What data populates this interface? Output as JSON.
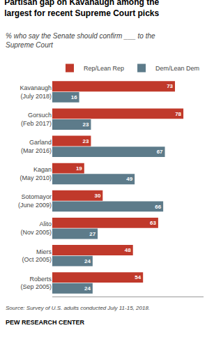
{
  "chart_data": {
    "type": "bar",
    "orientation": "horizontal",
    "title": "Partisan gap on Kavanaugh among the\nlargest for recent Supreme Court picks",
    "subtitle": "% who say the Senate should confirm ___ to the\nSupreme Court",
    "annotations": [
      "Source: Survey of U.S. adults conducted July 11-15, 2018.",
      "PEW RESEARCH CENTER"
    ],
    "categories": [
      "Kavanaugh\n(July 2018)",
      "Gorsuch\n(Feb 2017)",
      "Garland\n(Mar 2016)",
      "Kagan\n(May 2010)",
      "Sotomayor\n(June 2009)",
      "Alito\n(Nov 2005)",
      "Miers\n(Oct 2005)",
      "Roberts\n(Sep 2005)"
    ],
    "series": [
      {
        "name": "Rep/Lean Rep",
        "color": "#C0392B",
        "values": [
          73,
          78,
          23,
          19,
          30,
          63,
          48,
          54
        ]
      },
      {
        "name": "Dem/Lean Dem",
        "color": "#5D7B8A",
        "values": [
          16,
          23,
          67,
          49,
          66,
          27,
          24,
          24
        ]
      }
    ],
    "xlim": [
      0,
      90
    ],
    "grid": false,
    "legend": "top right",
    "data_labels": true,
    "tick_labels": "y"
  }
}
